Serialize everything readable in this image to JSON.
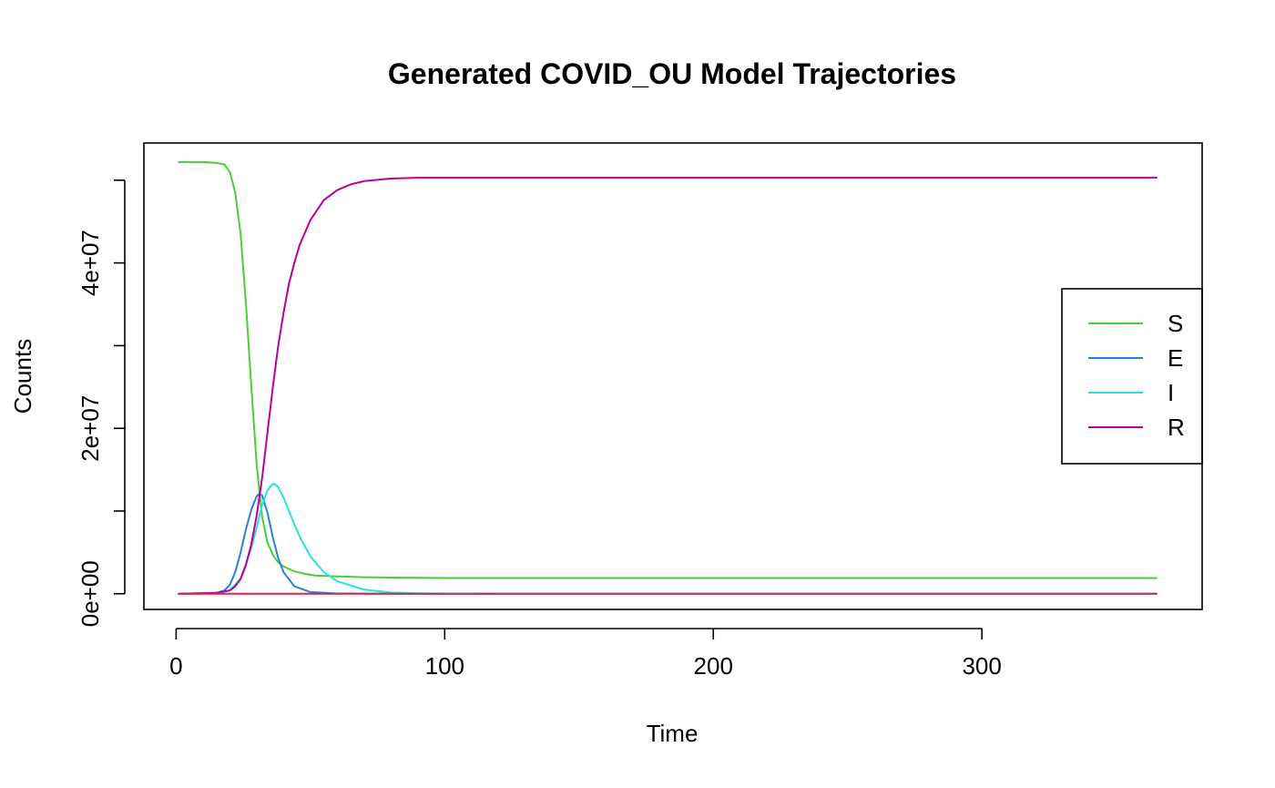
{
  "chart_data": {
    "type": "line",
    "title": "Generated COVID_OU Model Trajectories",
    "xlabel": "Time",
    "ylabel": "Counts",
    "xlim": [
      -12,
      382
    ],
    "ylim": [
      -1900000,
      54500000
    ],
    "x_ticks": [
      0,
      100,
      200,
      300
    ],
    "x_tick_labels": [
      "0",
      "100",
      "200",
      "300"
    ],
    "y_ticks": [
      0,
      10000000,
      20000000,
      30000000,
      40000000,
      50000000
    ],
    "y_tick_labels": [
      "0e+00",
      "",
      "2e+07",
      "",
      "4e+07",
      ""
    ],
    "grid": false,
    "legend_position": "right",
    "series": [
      {
        "name": "S",
        "color": "#4ccc3a",
        "x": [
          1,
          10,
          15,
          18,
          20,
          22,
          24,
          26,
          28,
          30,
          32,
          34,
          36,
          38,
          40,
          44,
          48,
          52,
          60,
          70,
          80,
          100,
          150,
          200,
          250,
          300,
          365
        ],
        "y": [
          52200000,
          52200000,
          52100000,
          51900000,
          51000000,
          48500000,
          43500000,
          35000000,
          25000000,
          15500000,
          9300000,
          6200000,
          4700000,
          3800000,
          3300000,
          2700000,
          2400000,
          2200000,
          2100000,
          2000000,
          1950000,
          1900000,
          1900000,
          1900000,
          1900000,
          1900000,
          1900000
        ]
      },
      {
        "name": "E",
        "color": "#2a80d3",
        "x": [
          1,
          10,
          15,
          18,
          20,
          22,
          24,
          26,
          28,
          30,
          31,
          32,
          34,
          36,
          38,
          40,
          44,
          50,
          60,
          80,
          100,
          365
        ],
        "y": [
          0,
          20000,
          100000,
          400000,
          1100000,
          2600000,
          5000000,
          7800000,
          10200000,
          11800000,
          12100000,
          11900000,
          9800000,
          6800000,
          4300000,
          2600000,
          900000,
          200000,
          30000,
          0,
          0,
          0
        ]
      },
      {
        "name": "I",
        "color": "#28e0e0",
        "x": [
          1,
          15,
          20,
          24,
          28,
          30,
          32,
          34,
          36,
          37,
          38,
          40,
          42,
          44,
          46,
          50,
          55,
          60,
          70,
          80,
          90,
          100,
          120,
          365
        ],
        "y": [
          0,
          50000,
          400000,
          1800000,
          5500000,
          8100000,
          10700000,
          12500000,
          13300000,
          13200000,
          12900000,
          11600000,
          10000000,
          8400000,
          6900000,
          4500000,
          2600000,
          1500000,
          500000,
          150000,
          50000,
          20000,
          0,
          0
        ]
      },
      {
        "name": "R",
        "color": "#b8009e",
        "x": [
          1,
          15,
          20,
          22,
          24,
          26,
          28,
          30,
          32,
          34,
          36,
          38,
          40,
          42,
          44,
          46,
          50,
          55,
          60,
          65,
          70,
          80,
          90,
          100,
          150,
          200,
          250,
          300,
          365
        ],
        "y": [
          0,
          100000,
          400000,
          900000,
          1800000,
          3500000,
          6000000,
          9500000,
          14000000,
          19500000,
          25000000,
          30000000,
          34000000,
          37500000,
          40000000,
          42200000,
          45200000,
          47600000,
          48800000,
          49500000,
          49900000,
          50200000,
          50300000,
          50300000,
          50300000,
          50300000,
          50300000,
          50300000,
          50300000
        ]
      },
      {
        "name": "",
        "color": "#e0233a",
        "x": [
          1,
          365
        ],
        "y": [
          0,
          0
        ]
      }
    ]
  }
}
